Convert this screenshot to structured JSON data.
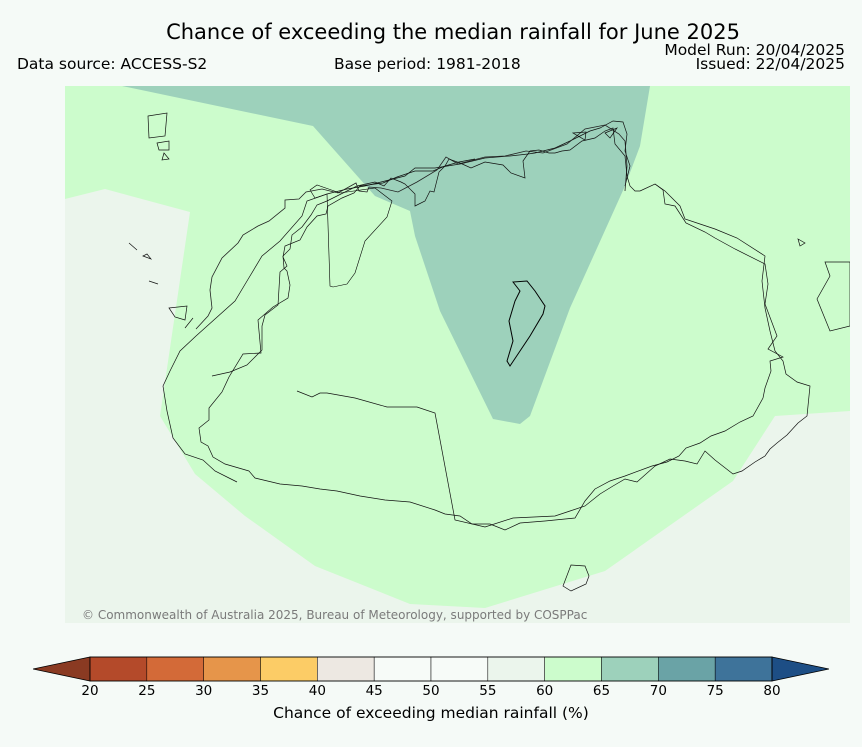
{
  "header": {
    "title": "Chance of exceeding the median rainfall for June 2025",
    "data_source": "Data source: ACCESS-S2",
    "base_period": "Base period: 1981-2018",
    "model_run": "Model Run: 20/04/2025",
    "issued": "Issued: 22/04/2025"
  },
  "map": {
    "copyright": "© Commonwealth of Australia 2025, Bureau of Meteorology, supported by COSPPac",
    "colors": {
      "band_55_60": "#ebf5ec",
      "band_60_65": "#ccfccc",
      "band_65_70": "#9dd1bb"
    }
  },
  "colorbar": {
    "label": "Chance of exceeding median rainfall (%)",
    "ticks": [
      "20",
      "25",
      "30",
      "35",
      "40",
      "45",
      "50",
      "55",
      "60",
      "65",
      "70",
      "75",
      "80"
    ],
    "under_color": "#8a3a22",
    "over_color": "#1d4e85",
    "colors": [
      "#b44a2a",
      "#d36a38",
      "#e6954a",
      "#fccc66",
      "#ede8e2",
      "#f7fbf8",
      "#f7fbf8",
      "#ebf5ec",
      "#ccfccc",
      "#9dd1bb",
      "#6aa3a6",
      "#3e739a"
    ]
  }
}
